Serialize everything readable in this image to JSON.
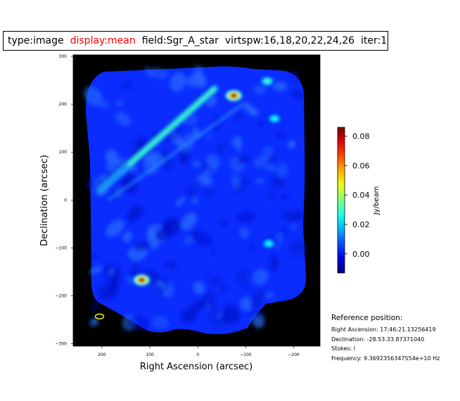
{
  "info": {
    "type": "type:image",
    "display": "display:mean",
    "field": "field:Sgr_A_star",
    "virtspw": "virtspw:16,18,20,22,24,26",
    "iter": "iter:1",
    "display_color": "#ff0000"
  },
  "chart_data": {
    "type": "heatmap",
    "title": "",
    "xlabel": "Right Ascension (arcsec)",
    "ylabel": "Declination (arcsec)",
    "x_range": [
      260,
      -255
    ],
    "y_range": [
      -305,
      303
    ],
    "x_ticks": [
      200,
      100,
      0,
      -100,
      -200
    ],
    "x_tick_labels": [
      "200",
      "100",
      "0",
      "−100",
      "−200"
    ],
    "y_ticks": [
      300,
      200,
      100,
      0,
      -100,
      -200,
      -300
    ],
    "y_tick_labels": [
      "300",
      "200",
      "100",
      "0",
      "−100",
      "−200",
      "−300"
    ],
    "colormap": "jet",
    "background_color": "#000000",
    "colorbar": {
      "label": "Jy/beam",
      "range": [
        -0.013,
        0.086
      ],
      "ticks": [
        0.0,
        0.02,
        0.04,
        0.06,
        0.08
      ],
      "tick_labels": [
        "0.00",
        "0.02",
        "0.04",
        "0.06",
        "0.08"
      ]
    },
    "sources": [
      {
        "ra": -75,
        "dec": 218,
        "peak_jy": 0.085
      },
      {
        "ra": 117,
        "dec": -167,
        "peak_jy": 0.085
      },
      {
        "ra": -145,
        "dec": 248,
        "peak_jy": 0.03
      },
      {
        "ra": -160,
        "dec": 170,
        "peak_jy": 0.025
      },
      {
        "ra": -148,
        "dec": -91,
        "peak_jy": 0.025
      }
    ],
    "filament": {
      "start": [
        202,
        22
      ],
      "end": [
        -35,
        232
      ],
      "peak_jy": 0.03
    },
    "beam": {
      "ra": 205,
      "dec": -243,
      "color": "#ffff00"
    }
  },
  "reference": {
    "heading": "Reference position:",
    "ra": "Right Ascension: 17:46:21.13256419",
    "dec": "Declination: -28.53.33.87371040",
    "stokes": "Stokes: I",
    "frequency": "Frequency: 9.3692356347554e+10 Hz"
  }
}
